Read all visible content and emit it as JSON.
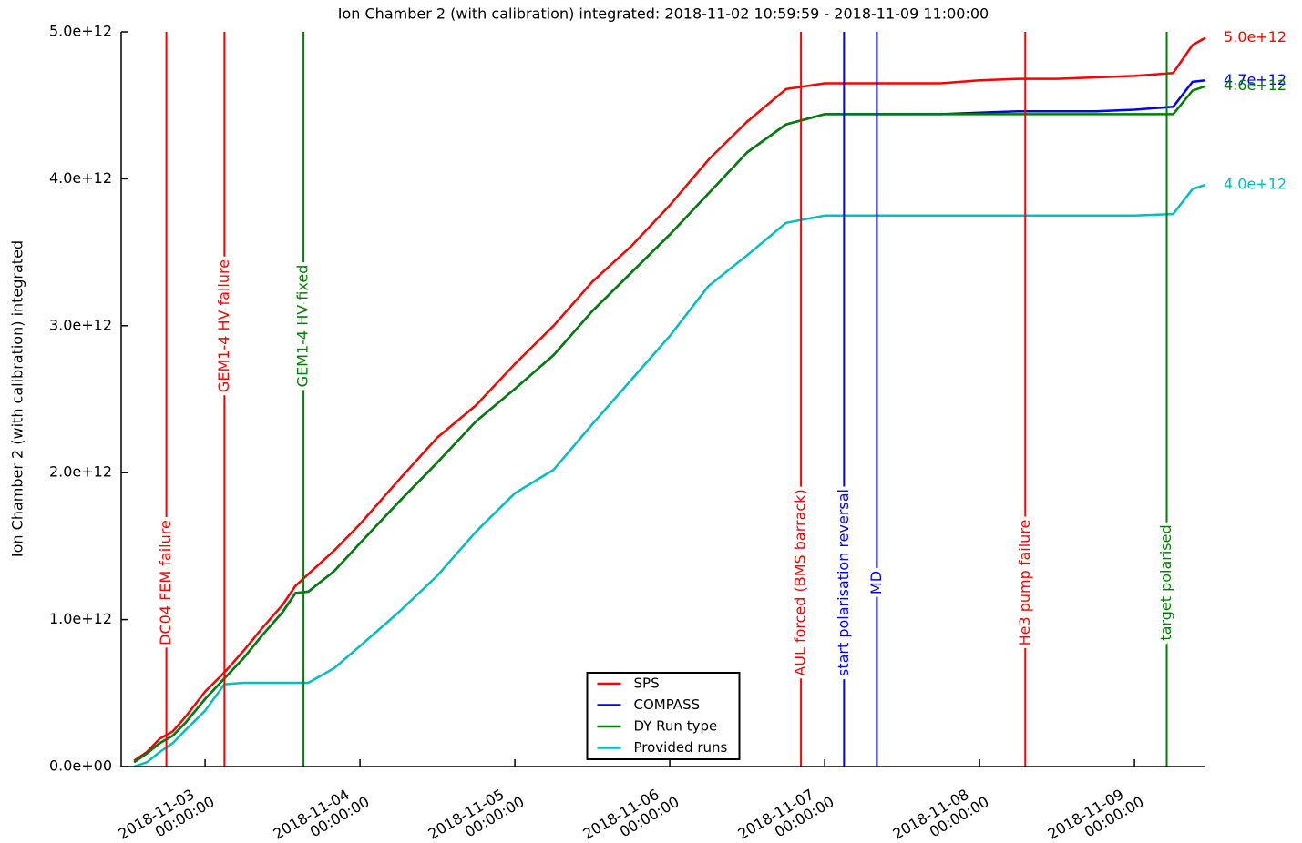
{
  "chart_data": {
    "type": "line",
    "title": "Ion Chamber 2 (with calibration) integrated: 2018-11-02 10:59:59 - 2018-11-09 11:00:00",
    "y_label": "Ion Chamber 2 (with calibration) integrated",
    "x": [
      "2018-11-02 13:00",
      "2018-11-02 15:00",
      "2018-11-02 17:00",
      "2018-11-02 19:00",
      "2018-11-02 21:00",
      "2018-11-03 00:00",
      "2018-11-03 03:00",
      "2018-11-03 06:00",
      "2018-11-03 09:00",
      "2018-11-03 12:00",
      "2018-11-03 14:00",
      "2018-11-03 16:00",
      "2018-11-03 20:00",
      "2018-11-04 00:00",
      "2018-11-04 06:00",
      "2018-11-04 12:00",
      "2018-11-04 18:00",
      "2018-11-05 00:00",
      "2018-11-05 06:00",
      "2018-11-05 12:00",
      "2018-11-05 18:00",
      "2018-11-06 00:00",
      "2018-11-06 06:00",
      "2018-11-06 12:00",
      "2018-11-06 18:00",
      "2018-11-07 00:00",
      "2018-11-07 06:00",
      "2018-11-07 12:00",
      "2018-11-07 18:00",
      "2018-11-08 00:00",
      "2018-11-08 06:00",
      "2018-11-08 12:00",
      "2018-11-08 18:00",
      "2018-11-09 00:00",
      "2018-11-09 06:00",
      "2018-11-09 09:00",
      "2018-11-09 11:00"
    ],
    "series": [
      {
        "name": "SPS",
        "color": "#ff0000",
        "values": [
          40000000000.0,
          100000000000.0,
          190000000000.0,
          240000000000.0,
          340000000000.0,
          510000000000.0,
          640000000000.0,
          790000000000.0,
          950000000000.0,
          1100000000000.0,
          1230000000000.0,
          1310000000000.0,
          1470000000000.0,
          1650000000000.0,
          1950000000000.0,
          2240000000000.0,
          2460000000000.0,
          2740000000000.0,
          3000000000000.0,
          3300000000000.0,
          3540000000000.0,
          3820000000000.0,
          4130000000000.0,
          4390000000000.0,
          4610000000000.0,
          4650000000000.0,
          4650000000000.0,
          4650000000000.0,
          4650000000000.0,
          4670000000000.0,
          4680000000000.0,
          4680000000000.0,
          4690000000000.0,
          4700000000000.0,
          4720000000000.0,
          4910000000000.0,
          4960000000000.0
        ],
        "value_labels": [
          null,
          null,
          null,
          null,
          null,
          null,
          null,
          null,
          null,
          null,
          null,
          null,
          null,
          null,
          null,
          null,
          null,
          null,
          null,
          null,
          null,
          null,
          null,
          null,
          null,
          null,
          null,
          null,
          null,
          null,
          null,
          null,
          null,
          null,
          null,
          null,
          "5.0e+12"
        ]
      },
      {
        "name": "COMPASS",
        "color": "#0000ff",
        "values": [
          30000000000.0,
          90000000000.0,
          160000000000.0,
          210000000000.0,
          300000000000.0,
          460000000000.0,
          600000000000.0,
          740000000000.0,
          900000000000.0,
          1050000000000.0,
          1180000000000.0,
          1190000000000.0,
          1330000000000.0,
          1520000000000.0,
          1800000000000.0,
          2070000000000.0,
          2350000000000.0,
          2570000000000.0,
          2800000000000.0,
          3100000000000.0,
          3360000000000.0,
          3620000000000.0,
          3900000000000.0,
          4180000000000.0,
          4370000000000.0,
          4440000000000.0,
          4440000000000.0,
          4440000000000.0,
          4440000000000.0,
          4450000000000.0,
          4460000000000.0,
          4460000000000.0,
          4460000000000.0,
          4470000000000.0,
          4490000000000.0,
          4660000000000.0,
          4670000000000.0
        ],
        "value_labels": [
          null,
          null,
          null,
          null,
          null,
          null,
          null,
          null,
          null,
          null,
          null,
          null,
          null,
          null,
          null,
          null,
          null,
          null,
          null,
          null,
          null,
          null,
          null,
          null,
          null,
          null,
          null,
          null,
          null,
          null,
          null,
          null,
          null,
          null,
          null,
          null,
          "4.7e+12"
        ]
      },
      {
        "name": "DY Run type",
        "color": "#007f00",
        "values": [
          30000000000.0,
          90000000000.0,
          160000000000.0,
          210000000000.0,
          300000000000.0,
          460000000000.0,
          600000000000.0,
          740000000000.0,
          900000000000.0,
          1050000000000.0,
          1180000000000.0,
          1190000000000.0,
          1330000000000.0,
          1520000000000.0,
          1800000000000.0,
          2070000000000.0,
          2350000000000.0,
          2570000000000.0,
          2800000000000.0,
          3100000000000.0,
          3360000000000.0,
          3620000000000.0,
          3900000000000.0,
          4180000000000.0,
          4370000000000.0,
          4440000000000.0,
          4440000000000.0,
          4440000000000.0,
          4440000000000.0,
          4440000000000.0,
          4440000000000.0,
          4440000000000.0,
          4440000000000.0,
          4440000000000.0,
          4440000000000.0,
          4600000000000.0,
          4630000000000.0
        ],
        "value_labels": [
          null,
          null,
          null,
          null,
          null,
          null,
          null,
          null,
          null,
          null,
          null,
          null,
          null,
          null,
          null,
          null,
          null,
          null,
          null,
          null,
          null,
          null,
          null,
          null,
          null,
          null,
          null,
          null,
          null,
          null,
          null,
          null,
          null,
          null,
          null,
          null,
          "4.6e+12"
        ]
      },
      {
        "name": "Provided runs",
        "color": "#00bfbf",
        "values": [
          0,
          30000000000.0,
          100000000000.0,
          160000000000.0,
          250000000000.0,
          380000000000.0,
          560000000000.0,
          570000000000.0,
          570000000000.0,
          570000000000.0,
          570000000000.0,
          570000000000.0,
          670000000000.0,
          820000000000.0,
          1050000000000.0,
          1300000000000.0,
          1600000000000.0,
          1860000000000.0,
          2020000000000.0,
          2330000000000.0,
          2630000000000.0,
          2930000000000.0,
          3270000000000.0,
          3480000000000.0,
          3700000000000.0,
          3750000000000.0,
          3750000000000.0,
          3750000000000.0,
          3750000000000.0,
          3750000000000.0,
          3750000000000.0,
          3750000000000.0,
          3750000000000.0,
          3750000000000.0,
          3760000000000.0,
          3930000000000.0,
          3960000000000.0
        ],
        "value_labels": [
          null,
          null,
          null,
          null,
          null,
          null,
          null,
          null,
          null,
          null,
          null,
          null,
          null,
          null,
          null,
          null,
          null,
          null,
          null,
          null,
          null,
          null,
          null,
          null,
          null,
          null,
          null,
          null,
          null,
          null,
          null,
          null,
          null,
          null,
          null,
          null,
          "4.0e+12"
        ]
      }
    ],
    "xlim": [
      "2018-11-02 10:59:59",
      "2018-11-09 11:00:00"
    ],
    "xticks": [
      "2018-11-03 00:00:00",
      "2018-11-04 00:00:00",
      "2018-11-05 00:00:00",
      "2018-11-06 00:00:00",
      "2018-11-07 00:00:00",
      "2018-11-08 00:00:00",
      "2018-11-09 00:00:00"
    ],
    "ylim": [
      0,
      5000000000000.0
    ],
    "yticks": [
      {
        "value": 0,
        "label": "0.0e+00"
      },
      {
        "value": 1000000000000.0,
        "label": "1.0e+12"
      },
      {
        "value": 2000000000000.0,
        "label": "2.0e+12"
      },
      {
        "value": 3000000000000.0,
        "label": "3.0e+12"
      },
      {
        "value": 4000000000000.0,
        "label": "4.0e+12"
      },
      {
        "value": 5000000000000.0,
        "label": "5.0e+12"
      }
    ],
    "grid": false,
    "legend": "lower center",
    "annotations": [
      {
        "x": "2018-11-02 18:00",
        "label": "DC04 FEM failure",
        "color": "#ff0000",
        "text_position": "low"
      },
      {
        "x": "2018-11-03 03:00",
        "label": "GEM1-4 HV failure",
        "color": "#ff0000",
        "text_position": "high"
      },
      {
        "x": "2018-11-03 15:15",
        "label": "GEM1-4 HV fixed",
        "color": "#007f00",
        "text_position": "high"
      },
      {
        "x": "2018-11-06 20:20",
        "label": "AUL forced (BMS barrack)",
        "color": "#ff0000",
        "text_position": "low"
      },
      {
        "x": "2018-11-07 03:00",
        "label": "start polarisation reversal",
        "color": "#0000ff",
        "text_position": "low"
      },
      {
        "x": "2018-11-07 08:05",
        "label": "MD",
        "color": "#0000ff",
        "text_position": "low"
      },
      {
        "x": "2018-11-08 07:05",
        "label": "He3 pump failure",
        "color": "#ff0000",
        "text_position": "low"
      },
      {
        "x": "2018-11-09 05:00",
        "label": "target polarised",
        "color": "#007f00",
        "text_position": "low"
      }
    ]
  }
}
